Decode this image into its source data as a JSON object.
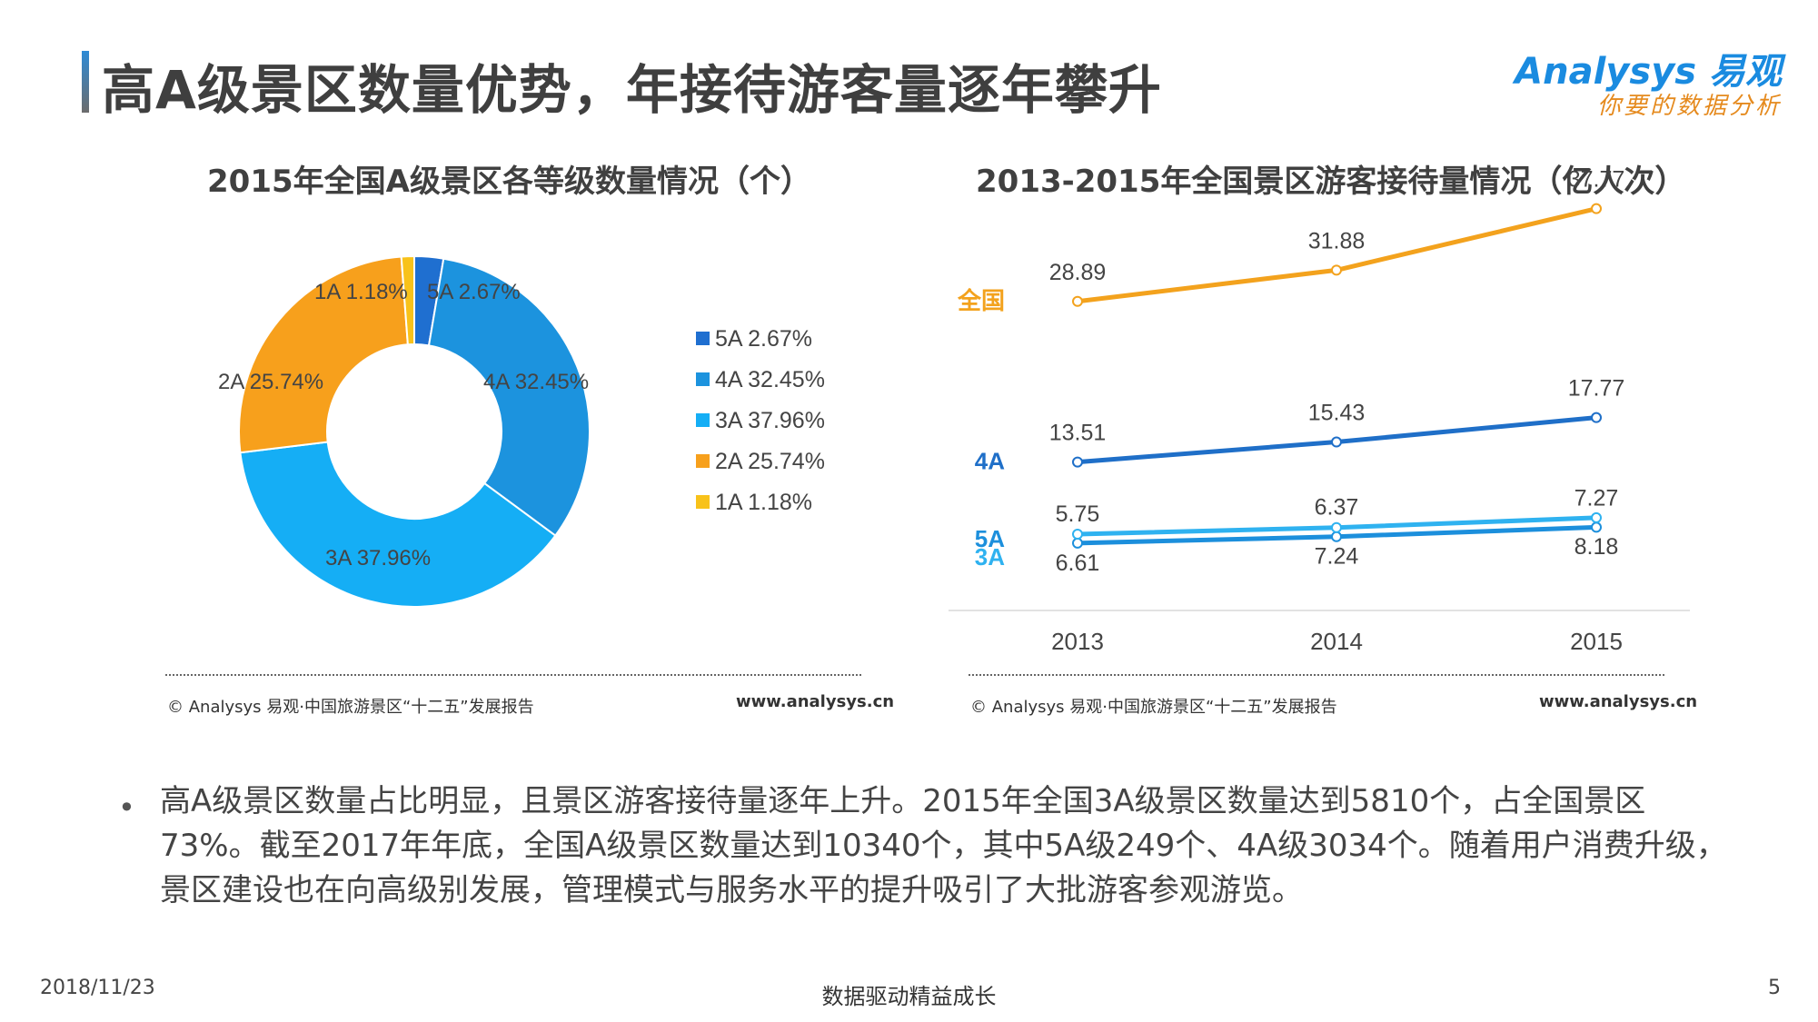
{
  "page": {
    "title": "高A级景区数量优势，年接待游客量逐年攀升",
    "logo": {
      "brand": "Analysys 易观",
      "slogan": "你要的数据分析"
    }
  },
  "charts": [
    {
      "title": "2015年全国A级景区各等级数量情况（个）",
      "source": "© Analysys 易观·中国旅游景区“十二五”发展报告",
      "site": "www.analysys.cn"
    },
    {
      "title": "2013-2015年全国景区游客接待量情况（亿人次）",
      "source": "© Analysys 易观·中国旅游景区“十二五”发展报告",
      "site": "www.analysys.cn"
    }
  ],
  "chart_data": [
    {
      "type": "pie",
      "donut": true,
      "categories": [
        "5A",
        "4A",
        "3A",
        "2A",
        "1A"
      ],
      "values": [
        2.67,
        32.45,
        37.96,
        25.74,
        1.18
      ],
      "labels": [
        "5A 2.67%",
        "4A 32.45%",
        "3A 37.96%",
        "2A 25.74%",
        "1A 1.18%"
      ],
      "colors": [
        "#1f6fd0",
        "#1c93de",
        "#15aef5",
        "#f7a01c",
        "#f8c21a"
      ],
      "legend": "right"
    },
    {
      "type": "line",
      "x": [
        "2013",
        "2014",
        "2015"
      ],
      "series": [
        {
          "name": "全国",
          "values": [
            28.89,
            31.88,
            37.77
          ],
          "color": "#f3a21d",
          "labels": [
            "28.89",
            "31.88",
            "37.77"
          ]
        },
        {
          "name": "4A",
          "values": [
            13.51,
            15.43,
            17.77
          ],
          "color": "#1f6fc8",
          "labels": [
            "13.51",
            "15.43",
            "17.77"
          ]
        },
        {
          "name": "5A",
          "values": [
            5.75,
            6.37,
            7.27
          ],
          "color": "#1c8fdc",
          "labels": [
            "5.75",
            "6.37",
            "7.27"
          ]
        },
        {
          "name": "3A",
          "values": [
            6.61,
            7.24,
            8.18
          ],
          "color": "#2fb2f0",
          "labels": [
            "6.61",
            "7.24",
            "8.18"
          ]
        }
      ]
    }
  ],
  "body_text": "高A级景区数量占比明显，且景区游客接待量逐年上升。2015年全国3A级景区数量达到5810个，占全国景区73%。截至2017年年底，全国A级景区数量达到10340个，其中5A级249个、4A级3034个。随着用户消费升级，景区建设也在向高级别发展，管理模式与服务水平的提升吸引了大批游客参观游览。",
  "footer": {
    "date": "2018/11/23",
    "slogan": "数据驱动精益成长",
    "page": "5"
  }
}
